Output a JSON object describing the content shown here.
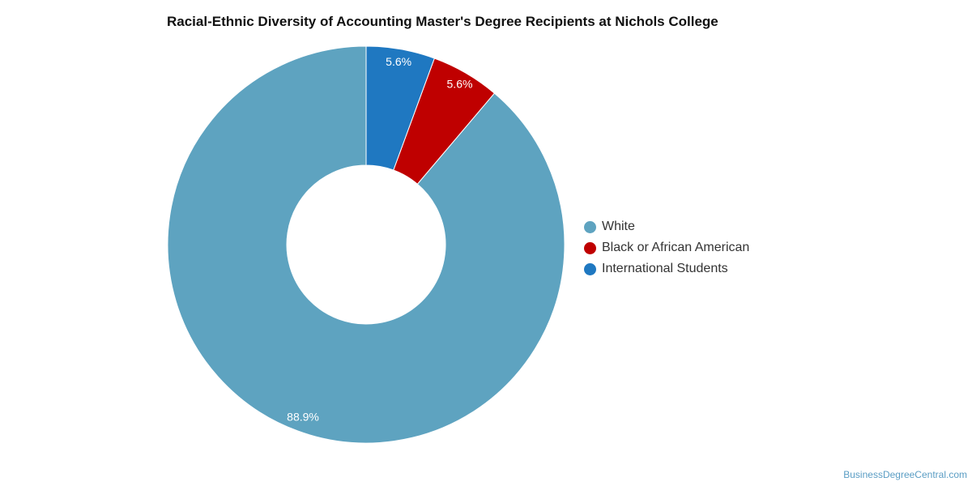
{
  "chart_data": {
    "type": "pie",
    "title": "Racial-Ethnic Diversity of Accounting Master's Degree Recipients at Nichols College",
    "categories": [
      "White",
      "Black or African American",
      "International Students"
    ],
    "values": [
      88.9,
      5.6,
      5.6
    ],
    "labels": [
      "88.9%",
      "5.6%",
      "5.6%"
    ],
    "colors": [
      "#5ea3c0",
      "#bf0000",
      "#1f78c1"
    ],
    "donut": true,
    "legend_position": "right"
  },
  "watermark": "BusinessDegreeCentral.com"
}
